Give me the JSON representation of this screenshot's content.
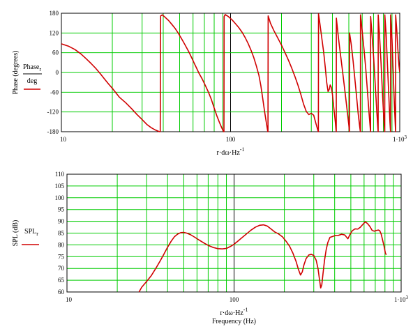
{
  "chart_data": [
    {
      "type": "line",
      "x_scale": "log",
      "xlim": [
        10,
        1000
      ],
      "ylim": [
        -180,
        180
      ],
      "grid": true,
      "ylabel": "Phase (degrees)",
      "legend": {
        "numerator": "Phase",
        "subscript": "r",
        "denominator": "deg"
      },
      "xlabel": {
        "main": "r·dω·Hz",
        "sup": "-1"
      },
      "x_ticks": [
        {
          "value": 10,
          "label": "10"
        },
        {
          "value": 100,
          "label": "100"
        },
        {
          "value": 1000,
          "label": "1·10",
          "sup": "3"
        }
      ],
      "y_ticks": [
        -180,
        -120,
        -60,
        0,
        60,
        120,
        180
      ],
      "series": [
        {
          "color": "#d00000",
          "points": [
            [
              10,
              87
            ],
            [
              11,
              80
            ],
            [
              12,
              70
            ],
            [
              13,
              57
            ],
            [
              14,
              42
            ],
            [
              15,
              27
            ],
            [
              16,
              12
            ],
            [
              17,
              -4
            ],
            [
              18,
              -20
            ],
            [
              19,
              -35
            ],
            [
              20,
              -48
            ],
            [
              21,
              -62
            ],
            [
              22,
              -75
            ],
            [
              24,
              -92
            ],
            [
              26,
              -110
            ],
            [
              28,
              -128
            ],
            [
              30,
              -143
            ],
            [
              32,
              -158
            ],
            [
              34,
              -168
            ],
            [
              36,
              -175
            ],
            [
              38,
              -180
            ],
            [
              38.4,
              -180
            ],
            [
              38.6,
              172
            ],
            [
              39.5,
              175
            ],
            [
              41,
              168
            ],
            [
              43,
              158
            ],
            [
              45,
              146
            ],
            [
              47,
              134
            ],
            [
              49,
              120
            ],
            [
              51,
              105
            ],
            [
              53,
              90
            ],
            [
              55,
              75
            ],
            [
              57,
              60
            ],
            [
              59,
              44
            ],
            [
              61,
              28
            ],
            [
              63,
              13
            ],
            [
              65,
              -2
            ],
            [
              68,
              -20
            ],
            [
              71,
              -40
            ],
            [
              74,
              -60
            ],
            [
              77,
              -82
            ],
            [
              80,
              -108
            ],
            [
              83,
              -132
            ],
            [
              86,
              -152
            ],
            [
              89,
              -170
            ],
            [
              91,
              -180
            ],
            [
              91.4,
              -180
            ],
            [
              91.6,
              170
            ],
            [
              93,
              176
            ],
            [
              97,
              170
            ],
            [
              102,
              160
            ],
            [
              107,
              148
            ],
            [
              112,
              136
            ],
            [
              117,
              122
            ],
            [
              122,
              106
            ],
            [
              127,
              88
            ],
            [
              132,
              68
            ],
            [
              137,
              46
            ],
            [
              142,
              20
            ],
            [
              147,
              -8
            ],
            [
              151,
              -40
            ],
            [
              155,
              -80
            ],
            [
              159,
              -120
            ],
            [
              163,
              -155
            ],
            [
              166,
              -180
            ],
            [
              166.4,
              -180
            ],
            [
              166.8,
              172
            ],
            [
              172,
              150
            ],
            [
              180,
              128
            ],
            [
              190,
              105
            ],
            [
              200,
              83
            ],
            [
              210,
              60
            ],
            [
              220,
              37
            ],
            [
              230,
              13
            ],
            [
              240,
              -12
            ],
            [
              250,
              -38
            ],
            [
              260,
              -66
            ],
            [
              270,
              -96
            ],
            [
              280,
              -118
            ],
            [
              290,
              -128
            ],
            [
              300,
              -124
            ],
            [
              310,
              -130
            ],
            [
              320,
              -156
            ],
            [
              330,
              -180
            ],
            [
              330.4,
              -180
            ],
            [
              331,
              178
            ],
            [
              336,
              155
            ],
            [
              345,
              110
            ],
            [
              355,
              62
            ],
            [
              363,
              15
            ],
            [
              370,
              -30
            ],
            [
              377,
              -58
            ],
            [
              384,
              -50
            ],
            [
              388,
              -38
            ],
            [
              394,
              -45
            ],
            [
              400,
              -66
            ],
            [
              408,
              -110
            ],
            [
              416,
              -150
            ],
            [
              421,
              -180
            ],
            [
              421.4,
              -180
            ],
            [
              422,
              165
            ],
            [
              431,
              120
            ],
            [
              440,
              80
            ],
            [
              450,
              40
            ],
            [
              460,
              0
            ],
            [
              470,
              -40
            ],
            [
              480,
              -80
            ],
            [
              490,
              -120
            ],
            [
              500,
              -160
            ],
            [
              504,
              -180
            ],
            [
              504.4,
              -180
            ],
            [
              505,
              120
            ],
            [
              517,
              85
            ],
            [
              530,
              35
            ],
            [
              543,
              -20
            ],
            [
              556,
              -75
            ],
            [
              568,
              -125
            ],
            [
              580,
              -165
            ],
            [
              585,
              -180
            ],
            [
              585.4,
              -180
            ],
            [
              586,
              175
            ],
            [
              600,
              125
            ],
            [
              615,
              70
            ],
            [
              630,
              10
            ],
            [
              645,
              -60
            ],
            [
              660,
              -130
            ],
            [
              672,
              -180
            ],
            [
              672.4,
              -180
            ],
            [
              673,
              170
            ],
            [
              687,
              110
            ],
            [
              702,
              40
            ],
            [
              717,
              -40
            ],
            [
              732,
              -120
            ],
            [
              745,
              -180
            ],
            [
              745.4,
              -180
            ],
            [
              746,
              175
            ],
            [
              760,
              110
            ],
            [
              775,
              30
            ],
            [
              790,
              -60
            ],
            [
              805,
              -140
            ],
            [
              815,
              -180
            ],
            [
              815.4,
              -180
            ],
            [
              816,
              175
            ],
            [
              830,
              120
            ],
            [
              845,
              30
            ],
            [
              860,
              -60
            ],
            [
              875,
              -150
            ],
            [
              882,
              -180
            ],
            [
              882.4,
              -180
            ],
            [
              883,
              175
            ],
            [
              900,
              100
            ],
            [
              915,
              0
            ],
            [
              930,
              -100
            ],
            [
              945,
              -180
            ],
            [
              945.4,
              -180
            ],
            [
              946,
              175
            ],
            [
              960,
              130
            ],
            [
              975,
              70
            ],
            [
              990,
              20
            ],
            [
              1000,
              0
            ]
          ]
        }
      ]
    },
    {
      "type": "line",
      "x_scale": "log",
      "xlim": [
        10,
        1000
      ],
      "ylim": [
        60,
        110
      ],
      "grid": true,
      "ylabel": "SPL (dB)",
      "legend": {
        "name": "SPL",
        "subscript": "r"
      },
      "xlabel": {
        "main": "r·dω·Hz",
        "sup": "-1",
        "line2": "Frequency (Hz)"
      },
      "x_ticks": [
        {
          "value": 10,
          "label": "10"
        },
        {
          "value": 100,
          "label": "100"
        },
        {
          "value": 1000,
          "label": "1·10",
          "sup": "3"
        }
      ],
      "y_ticks": [
        60,
        65,
        70,
        75,
        80,
        85,
        90,
        95,
        100,
        105,
        110
      ],
      "series": [
        {
          "color": "#d00000",
          "points": [
            [
              27,
              60
            ],
            [
              28,
              62
            ],
            [
              30,
              64.5
            ],
            [
              32,
              67
            ],
            [
              34,
              70
            ],
            [
              36,
              73
            ],
            [
              38,
              76
            ],
            [
              40,
              79
            ],
            [
              42,
              81.5
            ],
            [
              44,
              83.5
            ],
            [
              46,
              84.6
            ],
            [
              48,
              85.2
            ],
            [
              50,
              85.3
            ],
            [
              52,
              85
            ],
            [
              55,
              84.3
            ],
            [
              58,
              83.3
            ],
            [
              62,
              82
            ],
            [
              66,
              80.8
            ],
            [
              70,
              79.8
            ],
            [
              75,
              78.9
            ],
            [
              80,
              78.4
            ],
            [
              85,
              78.3
            ],
            [
              90,
              78.5
            ],
            [
              95,
              79.3
            ],
            [
              100,
              80.3
            ],
            [
              105,
              81.5
            ],
            [
              110,
              82.7
            ],
            [
              118,
              84.5
            ],
            [
              126,
              86.2
            ],
            [
              134,
              87.5
            ],
            [
              142,
              88.3
            ],
            [
              150,
              88.5
            ],
            [
              158,
              88
            ],
            [
              166,
              86.8
            ],
            [
              175,
              85.5
            ],
            [
              185,
              84.6
            ],
            [
              195,
              83.4
            ],
            [
              205,
              81.5
            ],
            [
              215,
              79.4
            ],
            [
              225,
              76.5
            ],
            [
              235,
              73
            ],
            [
              243,
              69.5
            ],
            [
              250,
              67.2
            ],
            [
              256,
              68.5
            ],
            [
              262,
              71.5
            ],
            [
              270,
              74.2
            ],
            [
              280,
              75.7
            ],
            [
              290,
              76
            ],
            [
              300,
              75.5
            ],
            [
              310,
              73.5
            ],
            [
              318,
              70
            ],
            [
              325,
              65
            ],
            [
              330,
              61.7
            ],
            [
              335,
              63
            ],
            [
              341,
              68
            ],
            [
              348,
              73.5
            ],
            [
              356,
              78
            ],
            [
              364,
              81
            ],
            [
              375,
              83.2
            ],
            [
              390,
              83.6
            ],
            [
              405,
              84
            ],
            [
              420,
              84
            ],
            [
              440,
              84.5
            ],
            [
              460,
              84.2
            ],
            [
              480,
              82.6
            ],
            [
              495,
              84.5
            ],
            [
              510,
              86
            ],
            [
              530,
              86.8
            ],
            [
              550,
              86.7
            ],
            [
              570,
              87.5
            ],
            [
              590,
              88.7
            ],
            [
              610,
              89.8
            ],
            [
              630,
              89
            ],
            [
              650,
              87.8
            ],
            [
              670,
              86.2
            ],
            [
              690,
              85.8
            ],
            [
              710,
              86.1
            ],
            [
              730,
              86.3
            ],
            [
              745,
              86
            ],
            [
              760,
              84.5
            ],
            [
              775,
              82
            ],
            [
              790,
              79.5
            ],
            [
              805,
              76.5
            ],
            [
              815,
              75.8
            ]
          ]
        }
      ]
    }
  ]
}
